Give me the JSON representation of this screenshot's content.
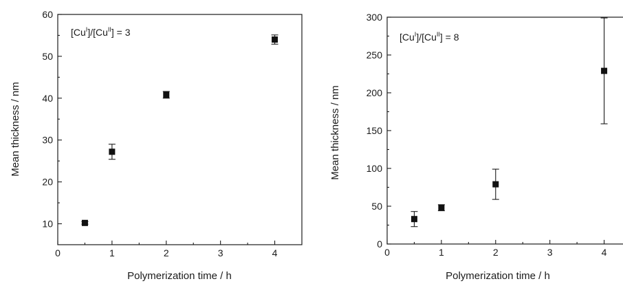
{
  "chart_data": [
    {
      "type": "scatter",
      "xlabel": "Polymerization time / h",
      "ylabel": "Mean thickness / nm",
      "annotation": {
        "main": "[Cu",
        "sup1": "I",
        "mid": "]/[Cu",
        "sup2": "II",
        "tail": "] = 3"
      },
      "xlim": [
        0,
        4.5
      ],
      "ylim": [
        5,
        60
      ],
      "xticks": [
        0,
        1,
        2,
        3,
        4
      ],
      "yticks": [
        10,
        20,
        30,
        40,
        50,
        60
      ],
      "xtick_labels": [
        "0",
        "1",
        "2",
        "3",
        "4"
      ],
      "ytick_labels": [
        "10",
        "20",
        "30",
        "40",
        "50",
        "60"
      ],
      "grid": false,
      "series": [
        {
          "x": [
            0.5,
            1,
            2,
            4
          ],
          "y": [
            10.2,
            27.2,
            40.8,
            54
          ],
          "yerr": [
            0.3,
            1.8,
            0.8,
            1.1
          ]
        }
      ],
      "marker_color": "#111111"
    },
    {
      "type": "scatter",
      "xlabel": "Polymerization time / h",
      "ylabel": "Mean thickness / nm",
      "annotation": {
        "main": "[Cu",
        "sup1": "I",
        "mid": "]/[Cu",
        "sup2": "II",
        "tail": "] = 8"
      },
      "xlim": [
        0,
        4.5
      ],
      "ylim": [
        0,
        300
      ],
      "xticks": [
        0,
        1,
        2,
        3,
        4
      ],
      "yticks": [
        0,
        50,
        100,
        150,
        200,
        250,
        300
      ],
      "xtick_labels": [
        "0",
        "1",
        "2",
        "3",
        "4"
      ],
      "ytick_labels": [
        "0",
        "50",
        "100",
        "150",
        "200",
        "250",
        "300"
      ],
      "grid": false,
      "series": [
        {
          "x": [
            0.5,
            1,
            2,
            4
          ],
          "y": [
            33,
            48,
            79,
            229
          ],
          "yerr": [
            10,
            4,
            20,
            70
          ]
        }
      ],
      "marker_color": "#111111"
    }
  ]
}
